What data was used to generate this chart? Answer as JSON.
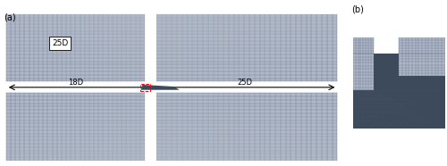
{
  "fig_width": 5.0,
  "fig_height": 1.86,
  "dpi": 100,
  "bg_color": "#ffffff",
  "mesh_color_dark": "#4a5a72",
  "mesh_color_mid": "#7a8aa2",
  "mesh_color_light": "#b0b8c8",
  "panel_a_label": "(a)",
  "panel_b_label": "(b)",
  "label_25D_top": "25D",
  "label_18D": "18D",
  "label_25D_right": "25D",
  "bridge_color": "#3d4a5c",
  "bridge_color2": "#4a5870"
}
